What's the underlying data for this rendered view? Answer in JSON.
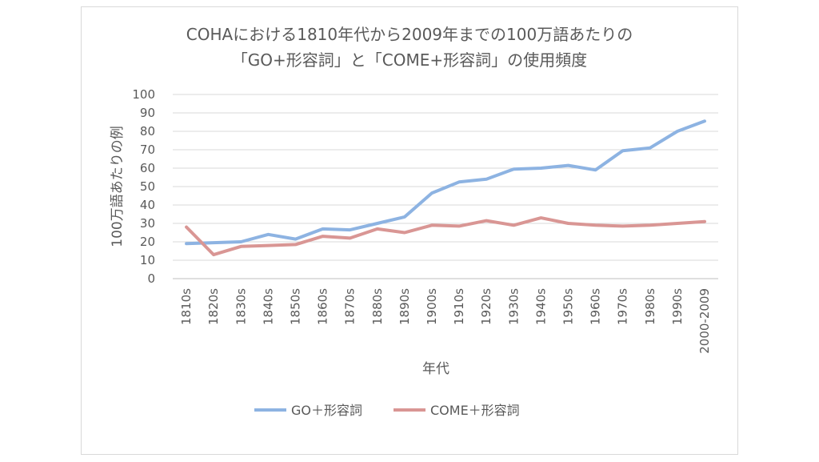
{
  "chart_data": {
    "type": "line",
    "title_lines": [
      "COHAにおける1810年代から2009年までの100万語あたりの",
      "「GO+形容詞」と「COME+形容詞」の使用頻度"
    ],
    "xlabel": "年代",
    "ylabel": "100万語あたりの例",
    "ylim": [
      0,
      100
    ],
    "yticks": [
      0,
      10,
      20,
      30,
      40,
      50,
      60,
      70,
      80,
      90,
      100
    ],
    "grid": true,
    "legend_position": "bottom",
    "categories": [
      "1810s",
      "1820s",
      "1830s",
      "1840s",
      "1850s",
      "1860s",
      "1870s",
      "1880s",
      "1890s",
      "1900s",
      "1910s",
      "1920s",
      "1930s",
      "1940s",
      "1950s",
      "1960s",
      "1970s",
      "1980s",
      "1990s",
      "2000-2009"
    ],
    "series": [
      {
        "name": "GO＋形容詞",
        "color": "#8db3e2",
        "values": [
          19,
          19.5,
          20,
          24,
          21.5,
          27,
          26.5,
          30,
          33.5,
          46.5,
          52.5,
          54,
          59.5,
          60,
          61.5,
          59,
          69.5,
          71,
          80,
          85.5
        ]
      },
      {
        "name": "COME＋形容詞",
        "color": "#d99694",
        "values": [
          28,
          13,
          17.5,
          18,
          18.5,
          23,
          22,
          27,
          25,
          29,
          28.5,
          31.5,
          29,
          33,
          30,
          29,
          28.5,
          29,
          30,
          31
        ]
      }
    ]
  }
}
